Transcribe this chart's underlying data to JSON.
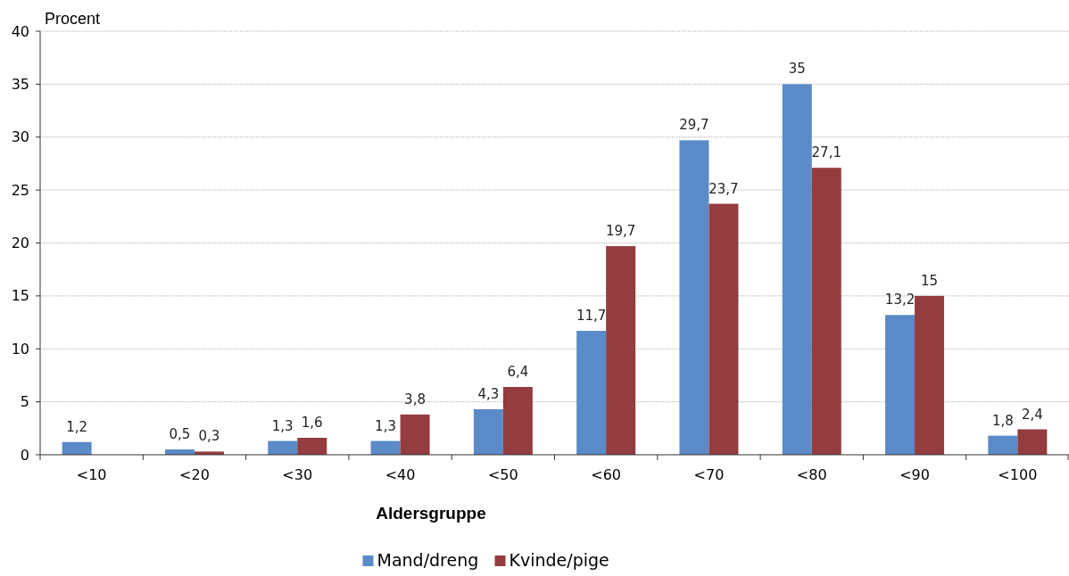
{
  "chart_data": {
    "type": "bar",
    "ylabel": "Procent",
    "xlabel": "Aldersgruppe",
    "categories": [
      "<10",
      "<20",
      "<30",
      "<40",
      "<50",
      "<60",
      "<70",
      "<80",
      "<90",
      "<100"
    ],
    "series": [
      {
        "name": "Mand/dreng",
        "color": "#5b8ac8",
        "values": [
          1.2,
          0.5,
          1.3,
          1.3,
          4.3,
          11.7,
          29.7,
          35,
          13.2,
          1.8
        ],
        "value_labels": [
          "1,2",
          "0,5",
          "1,3",
          "1,3",
          "4,3",
          "11,7",
          "29,7",
          "35",
          "13,2",
          "1,8"
        ]
      },
      {
        "name": "Kvinde/pige",
        "color": "#943c3f",
        "values": [
          null,
          0.3,
          1.6,
          3.8,
          6.4,
          19.7,
          23.7,
          27.1,
          15,
          2.4
        ],
        "value_labels": [
          null,
          "0,3",
          "1,6",
          "3,8",
          "6,4",
          "19,7",
          "23,7",
          "27,1",
          "15",
          "2,4"
        ]
      }
    ],
    "ylim": [
      0,
      40
    ],
    "yticks": [
      0,
      5,
      10,
      15,
      20,
      25,
      30,
      35,
      40
    ],
    "grid": "y",
    "legend": "bottom"
  }
}
